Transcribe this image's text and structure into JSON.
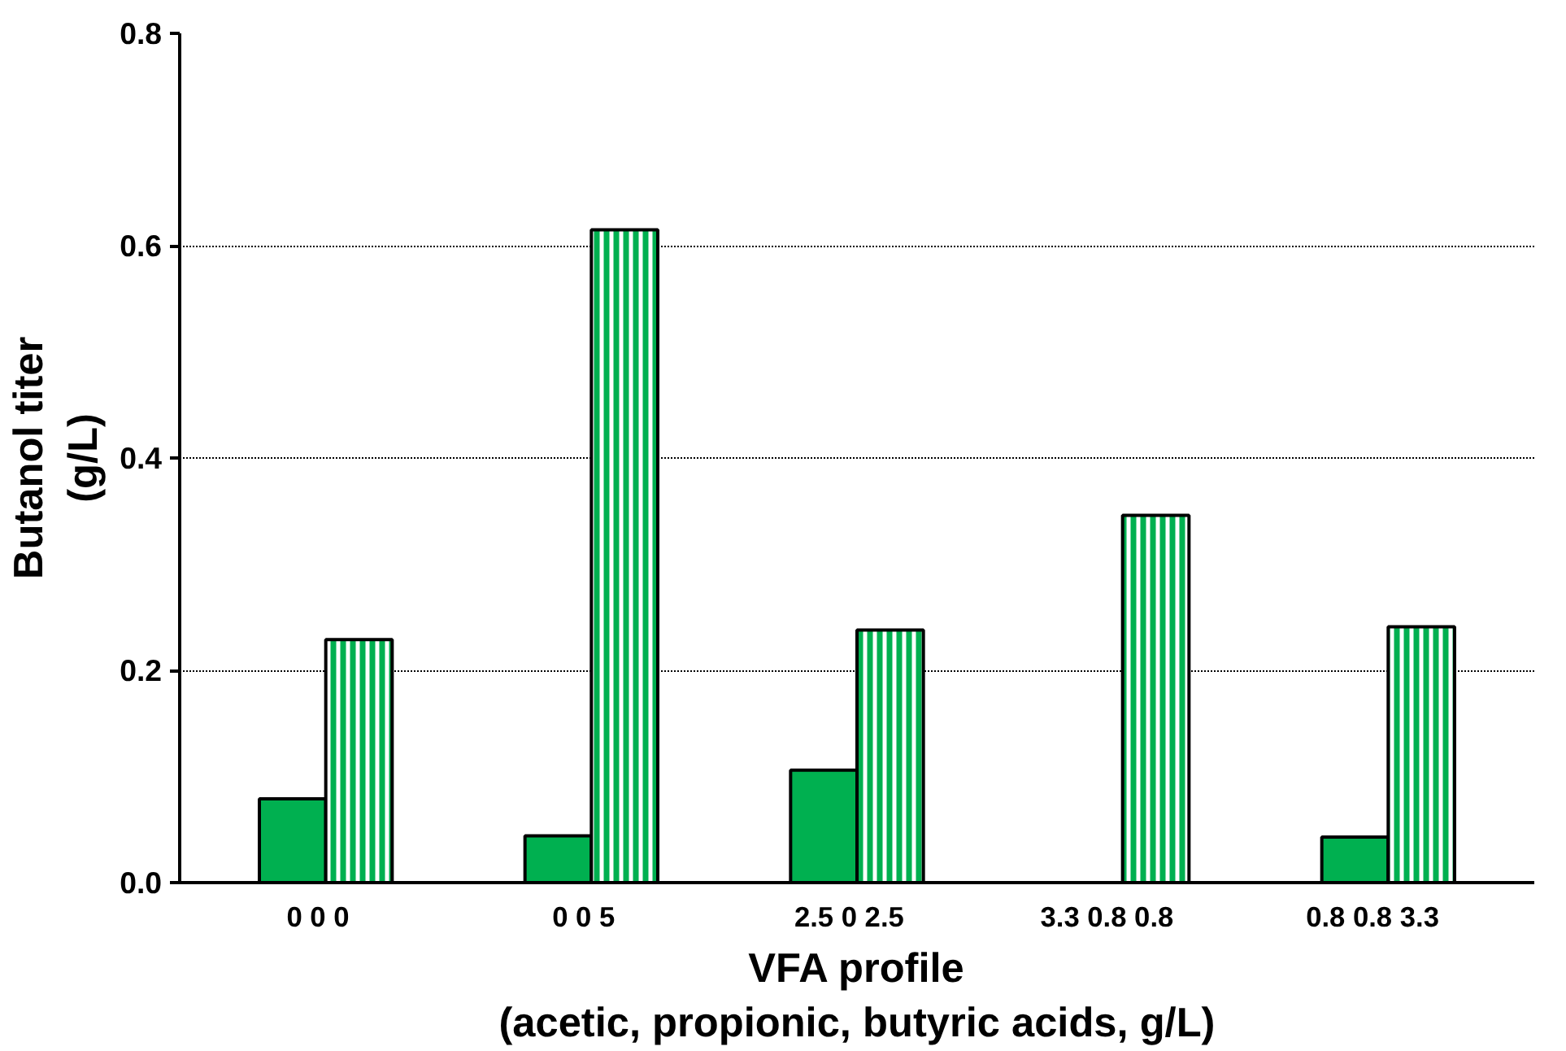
{
  "chart_data": {
    "type": "bar",
    "xlabel": "VFA profile\n(acetic, propionic, butyric acids, g/L)",
    "ylabel": "Butanol titer\n(g/L)",
    "categories": [
      "0  0  0",
      "0  0  5",
      "2.5  0  2.5",
      "3.3   0.8   0.8",
      "0.8   0.8   3.3"
    ],
    "series": [
      {
        "color": "#00b050",
        "values": [
          0.079,
          0.044,
          0.106,
          null,
          0.043
        ]
      },
      {
        "color": "#00b050",
        "values": [
          0.229,
          0.615,
          0.238,
          0.346,
          0.241
        ]
      }
    ],
    "ylim": [
      0,
      0.8
    ],
    "yticks": [
      {
        "value": 0,
        "label": "0.0"
      },
      {
        "value": 0.2,
        "label": "0.2"
      },
      {
        "value": 0.4,
        "label": "0.4"
      },
      {
        "value": 0.6,
        "label": "0.6"
      },
      {
        "value": 0.8,
        "label": "0.8"
      }
    ],
    "grid": "y"
  }
}
